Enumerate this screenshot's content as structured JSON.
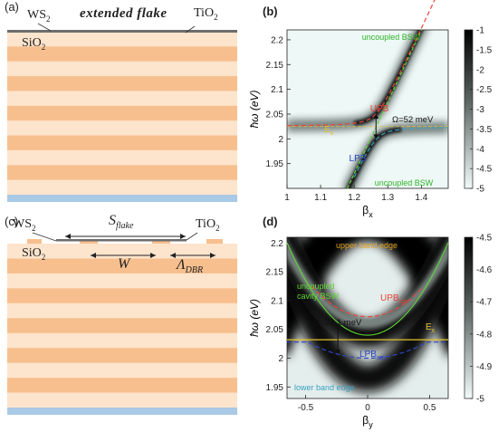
{
  "panel_a": {
    "label": "(a)",
    "ws2": "WS",
    "ws2_sub": "2",
    "flake": "extended flake",
    "tio2": "TiO",
    "tio2_sub": "2",
    "sio2": "SiO",
    "sio2_sub": "2"
  },
  "panel_c": {
    "label": "(c)",
    "ws2": "WS",
    "ws2_sub": "2",
    "tio2": "TiO",
    "tio2_sub": "2",
    "sio2": "SiO",
    "sio2_sub": "2",
    "s_flake": "S",
    "s_flake_sub": "flake",
    "w": "W",
    "lambda": "Λ",
    "lambda_sub": "DBR"
  },
  "colors": {
    "stripe_light": "#fde4cc",
    "stripe_dark": "#f7bf8e",
    "substrate": "#a9c9e6",
    "film": "#6d6d6d",
    "upb": "#e8443a",
    "lpb": "#2b46c7",
    "uncoupled": "#5fd635",
    "exciton": "#e5c22a",
    "diag": "#3aa1c2"
  },
  "chart_data": [
    {
      "panel": "(b)",
      "type": "heatmap",
      "xlabel": "β",
      "xlabel_sub": "x",
      "ylabel": "ħω (eV)",
      "xlim": [
        1.0,
        1.48
      ],
      "ylim": [
        1.9,
        2.22
      ],
      "xticks": [
        "1",
        "1.1",
        "1.2",
        "1.3",
        "1.4"
      ],
      "yticks": [
        "1.95",
        "2",
        "2.05",
        "2.1",
        "2.15",
        "2.2"
      ],
      "colorbar": {
        "min": -5,
        "max": -1,
        "ticks": [
          "-1",
          "-1.5",
          "-2",
          "-2.5",
          "-3",
          "-3.5",
          "-4",
          "-4.5",
          "-5"
        ]
      },
      "annotations": {
        "uncoupled_top": "uncoupled  BSW",
        "uncoupled_bottom": "uncoupled  BSW",
        "upb": "UPB",
        "lpb": "LPB",
        "ex": "E",
        "ex_sub": "x",
        "rabi": "Ω=52 meV"
      },
      "exciton_energy": 2.025,
      "bsw_curve": [
        [
          1.18,
          1.9
        ],
        [
          1.4,
          2.22
        ]
      ],
      "rabi_x": 1.265,
      "rabi_range": [
        2.0,
        2.05
      ]
    },
    {
      "panel": "(d)",
      "type": "heatmap",
      "xlabel": "β",
      "xlabel_sub": "y",
      "ylabel": "ħω (eV)",
      "xlim": [
        -0.65,
        0.65
      ],
      "ylim": [
        1.93,
        2.21
      ],
      "xticks": [
        "-0.5",
        "0",
        "0.5"
      ],
      "yticks": [
        "1.95",
        "2",
        "2.05",
        "2.1",
        "2.15",
        "2.2"
      ],
      "colorbar": {
        "min": -5,
        "max": -4.5,
        "ticks": [
          "-4.5",
          "-4.6",
          "-4.7",
          "-4.8",
          "-4.9",
          "-5"
        ]
      },
      "annotations": {
        "upper_band_edge": "upper band edge",
        "uncoupled_1": "uncoupled",
        "uncoupled_2": "cavity BSW",
        "upb": "UPB",
        "upb_sub": "cav",
        "lpb": "LPB",
        "lpb_sub": "cav",
        "ex": "E",
        "ex_sub": "x",
        "rabi": "Ω=32.1 meV",
        "lower_band_edge": "lower band edge"
      },
      "exciton_energy": 2.032,
      "cavity_min": 2.04,
      "upb_min": 2.072,
      "lpb_min": 2.0
    }
  ]
}
